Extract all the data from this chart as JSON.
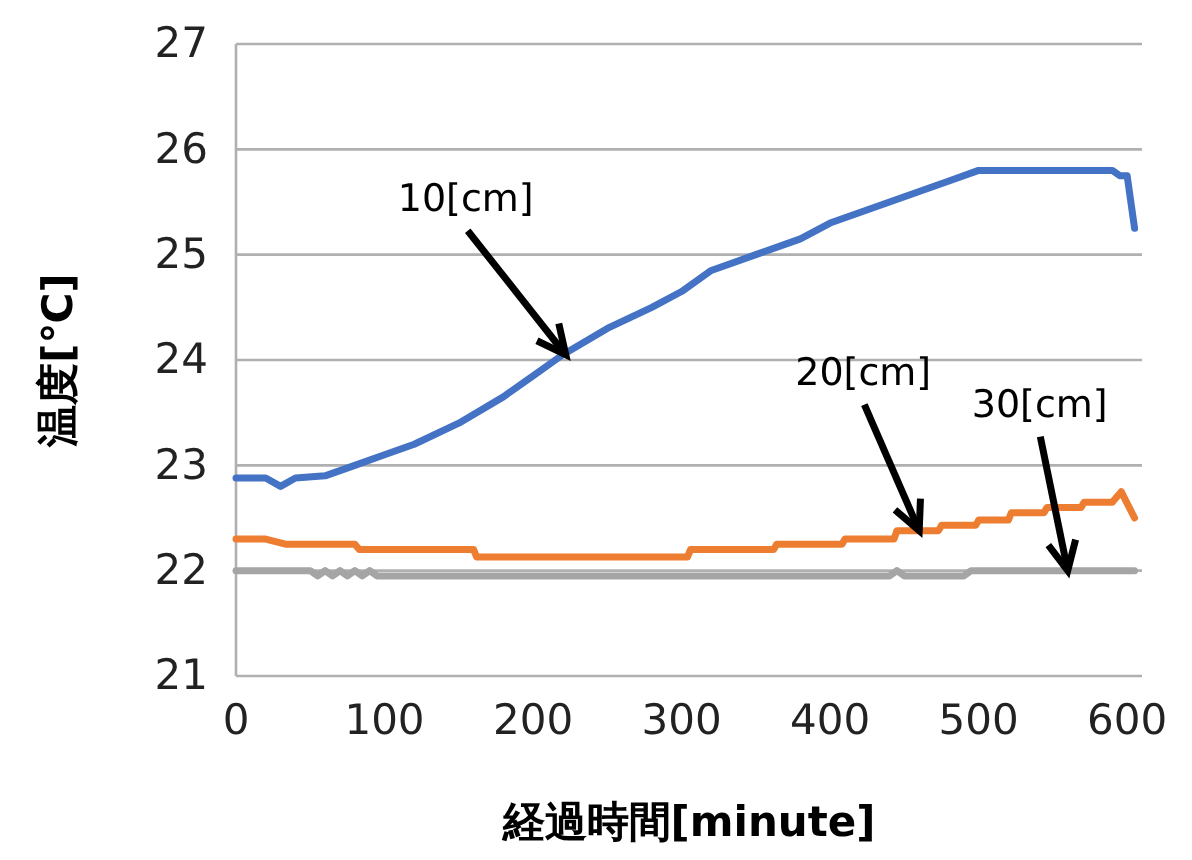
{
  "chart_data": {
    "type": "line",
    "xlabel": "経過時間[minute]",
    "ylabel": "温度[℃]",
    "xlim": [
      0,
      610
    ],
    "xticks": [
      0,
      100,
      200,
      300,
      400,
      500,
      600
    ],
    "ylim": [
      21,
      27
    ],
    "yticks": [
      21,
      22,
      23,
      24,
      25,
      26,
      27
    ],
    "grid": "y",
    "line_style": "solid",
    "marker": "none",
    "series": [
      {
        "color": "#4472c4",
        "x": [
          0,
          20,
          30,
          40,
          60,
          80,
          100,
          120,
          150,
          180,
          200,
          220,
          250,
          280,
          300,
          320,
          350,
          380,
          400,
          430,
          460,
          480,
          500,
          590,
          595,
          600,
          605
        ],
        "values": [
          22.88,
          22.88,
          22.8,
          22.88,
          22.9,
          23.0,
          23.1,
          23.2,
          23.4,
          23.65,
          23.85,
          24.05,
          24.3,
          24.5,
          24.65,
          24.85,
          25.0,
          25.15,
          25.3,
          25.45,
          25.6,
          25.7,
          25.8,
          25.8,
          25.75,
          25.75,
          25.25
        ]
      },
      {
        "color": "#ed7d31",
        "x": [
          0,
          20,
          34,
          80,
          83,
          160,
          162,
          304,
          306,
          362,
          364,
          408,
          410,
          443,
          445,
          473,
          475,
          498,
          500,
          520,
          522,
          544,
          546,
          569,
          571,
          590,
          596,
          605
        ],
        "values": [
          22.3,
          22.3,
          22.25,
          22.25,
          22.2,
          22.2,
          22.13,
          22.13,
          22.2,
          22.2,
          22.25,
          22.25,
          22.3,
          22.3,
          22.38,
          22.38,
          22.43,
          22.43,
          22.48,
          22.48,
          22.55,
          22.55,
          22.6,
          22.6,
          22.65,
          22.65,
          22.75,
          22.5
        ]
      },
      {
        "color": "#a5a5a5",
        "x": [
          0,
          50,
          55,
          60,
          65,
          70,
          75,
          80,
          85,
          90,
          95,
          440,
          445,
          450,
          455,
          490,
          495,
          605
        ],
        "values": [
          22.0,
          22.0,
          21.95,
          22.0,
          21.95,
          22.0,
          21.95,
          22.0,
          21.95,
          22.0,
          21.95,
          21.95,
          22.0,
          21.95,
          21.95,
          21.95,
          22.0,
          22.0
        ]
      }
    ],
    "annotations": [
      {
        "text": "10[cm]",
        "x": 222,
        "y": 24.05
      },
      {
        "text": "20[cm]",
        "x": 460,
        "y": 22.38
      },
      {
        "text": "30[cm]",
        "x": 560,
        "y": 22.0
      }
    ]
  }
}
